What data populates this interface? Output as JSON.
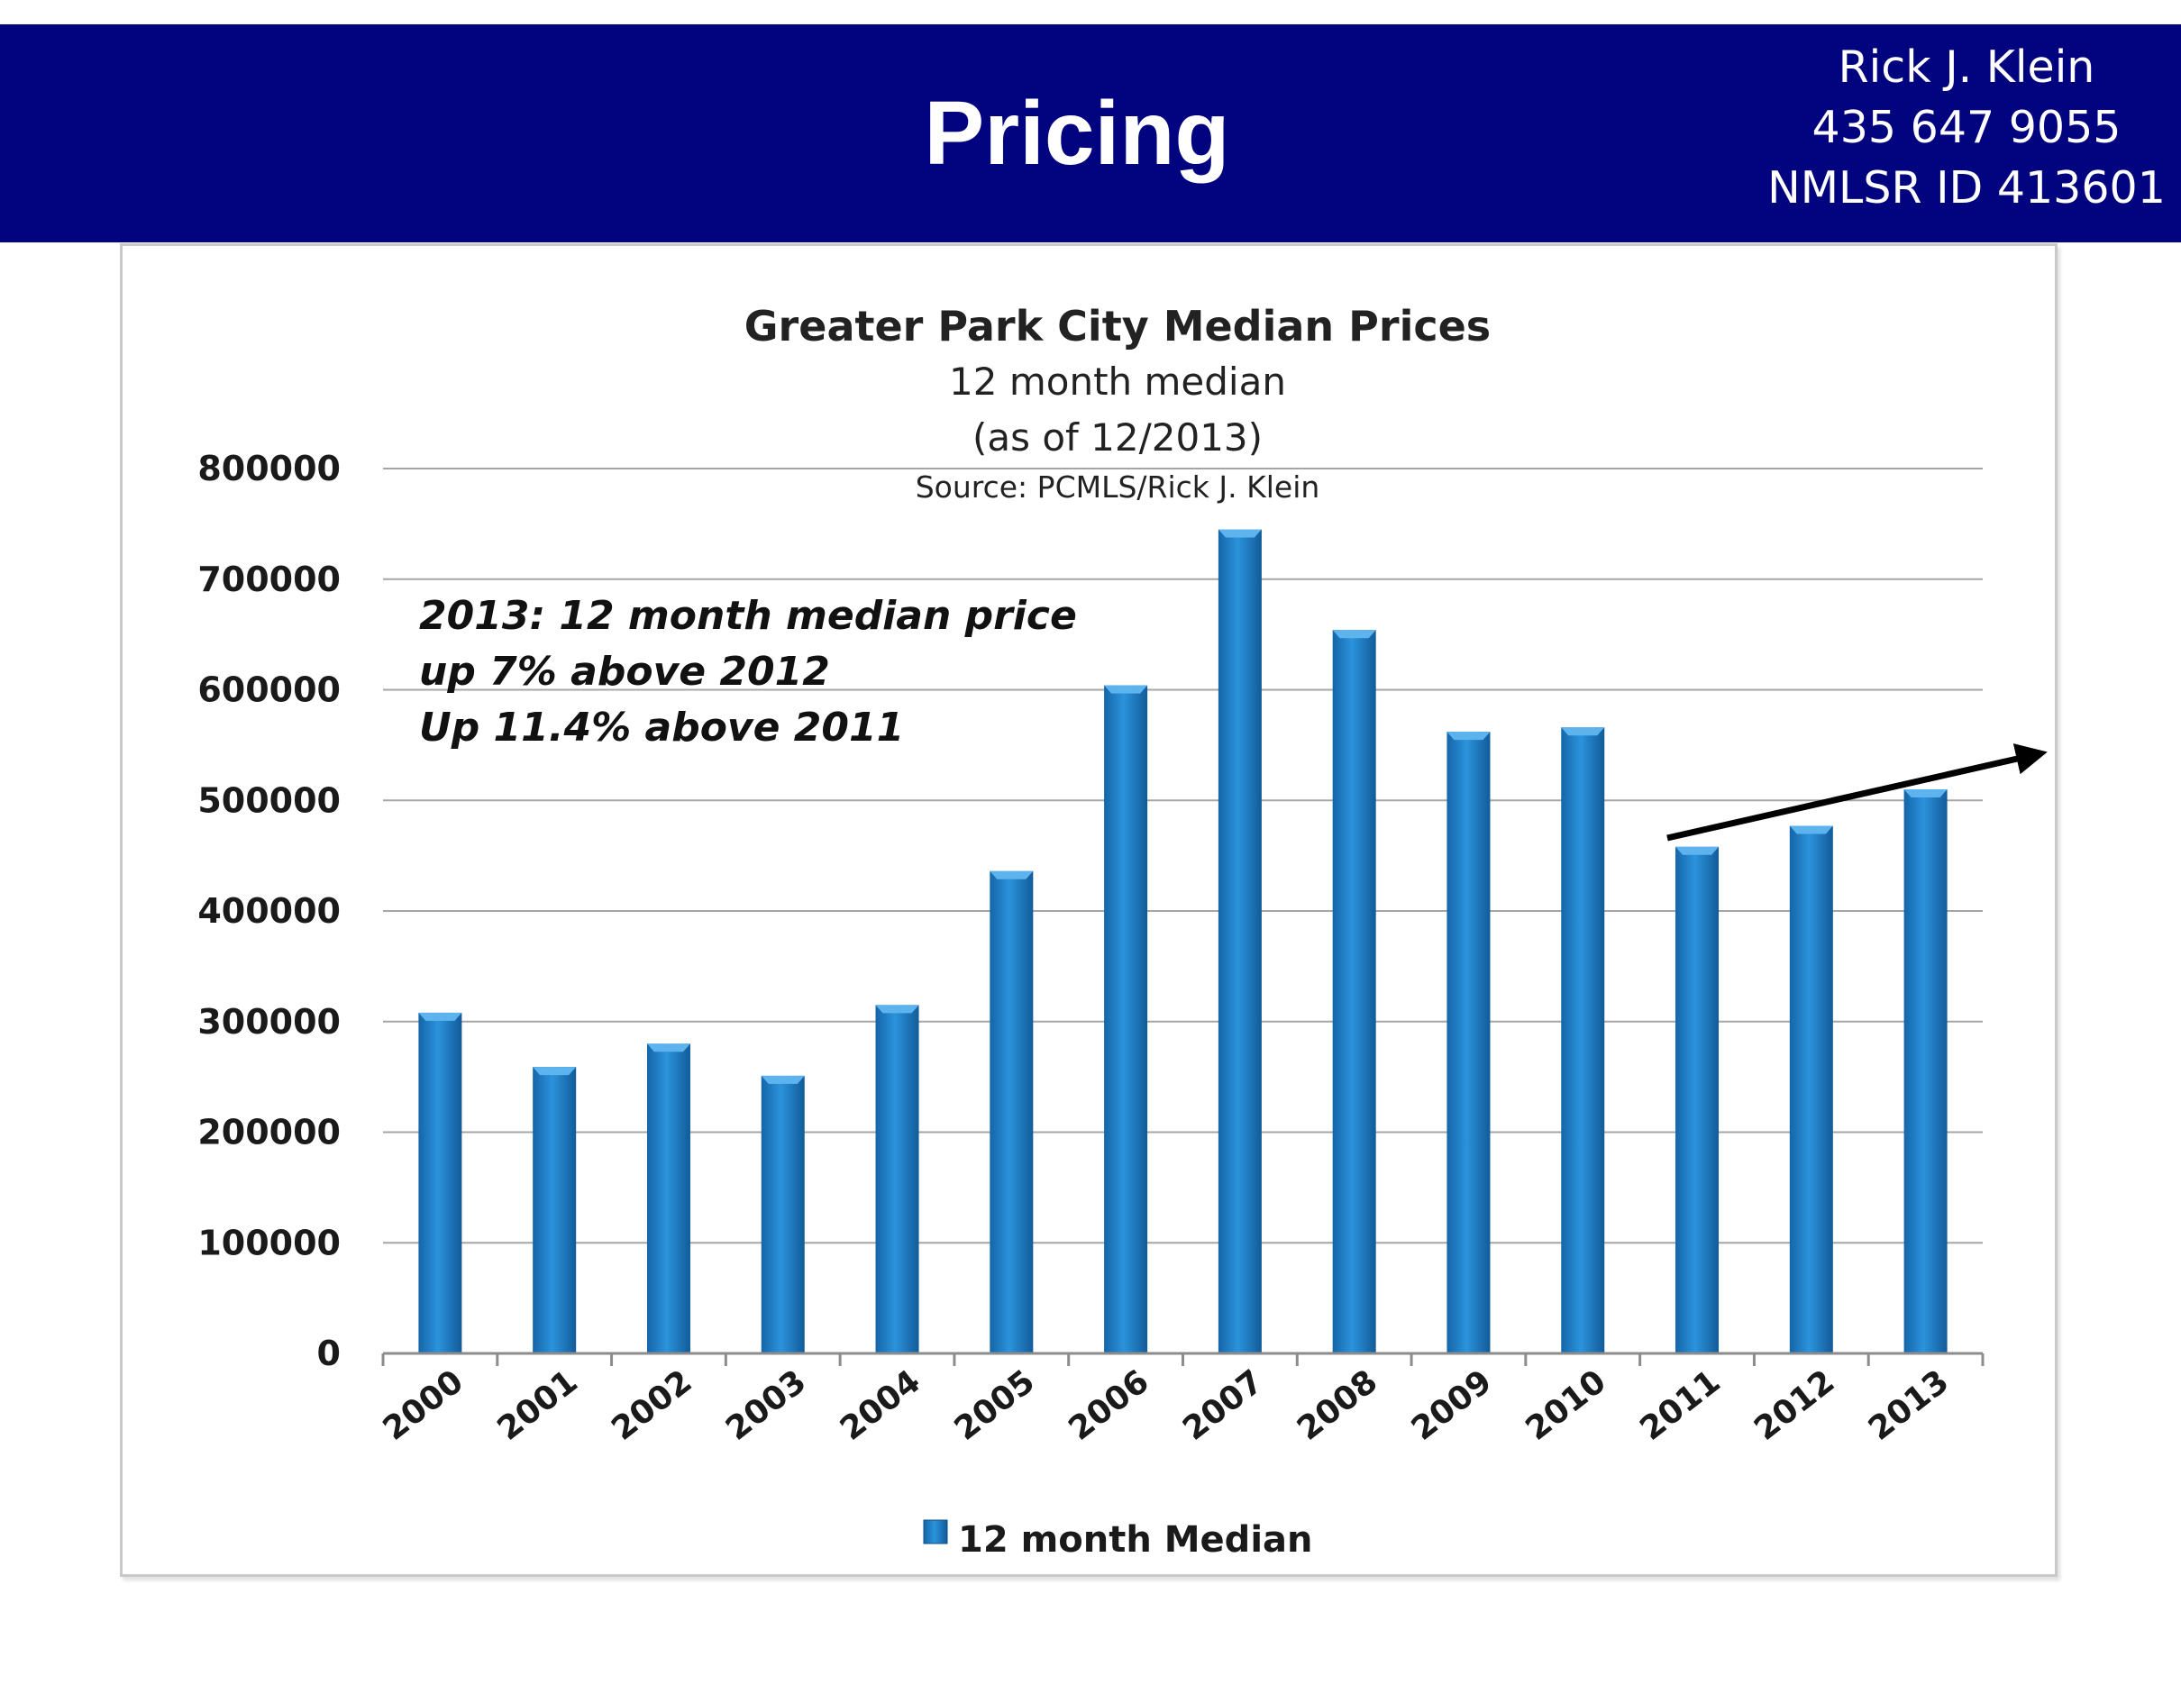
{
  "slide": {
    "title": "Pricing",
    "contact": [
      "Rick J. Klein",
      "435 647 9055",
      "NMLSR ID 413601"
    ]
  },
  "colors": {
    "header_bg": "#02037f",
    "bar": "#1f7fc7",
    "gridline": "#a6a6a6",
    "trend_arrow": "#000000"
  },
  "chart_data": {
    "type": "bar",
    "title": "Greater Park City Median Prices",
    "subtitle_lines": [
      "12 month median",
      "(as of 12/2013)"
    ],
    "source": "Source: PCMLS/Rick J. Klein",
    "categories": [
      "2000",
      "2001",
      "2002",
      "2003",
      "2004",
      "2005",
      "2006",
      "2007",
      "2008",
      "2009",
      "2010",
      "2011",
      "2012",
      "2013"
    ],
    "series": [
      {
        "name": "12 month Median",
        "values": [
          308000,
          259000,
          280000,
          251000,
          315000,
          436000,
          604000,
          745000,
          654000,
          562000,
          566000,
          458000,
          477000,
          510000
        ]
      }
    ],
    "y_ticks": [
      0,
      100000,
      200000,
      300000,
      400000,
      500000,
      600000,
      700000,
      800000
    ],
    "ylim": [
      0,
      800000
    ],
    "grid": true,
    "legend_position": "bottom",
    "annotation_lines": [
      "2013: 12 month median price",
      "up 7% above 2012",
      "Up 11.4% above 2011"
    ],
    "trend_arrow": {
      "from_category": "2011",
      "to": "beyond 2013",
      "direction": "up"
    }
  }
}
